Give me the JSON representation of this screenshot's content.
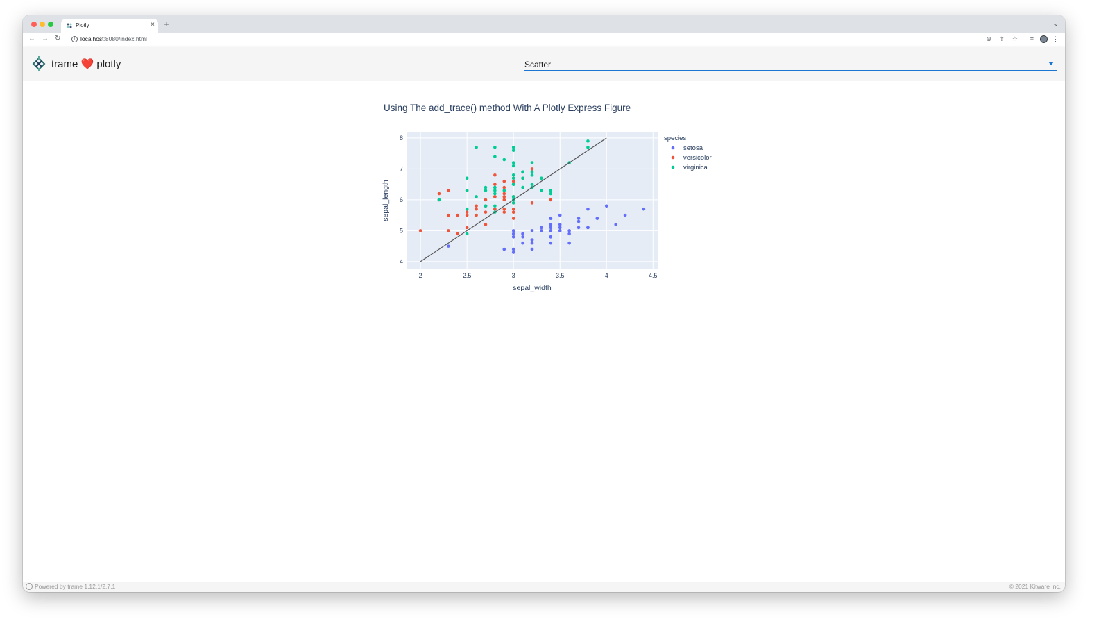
{
  "browser": {
    "tab_title": "Plotly",
    "url_host": "localhost",
    "url_path": ":8080/index.html",
    "new_tab": "+",
    "tab_close": "×"
  },
  "app": {
    "title_left": "trame",
    "heart": "❤️",
    "title_right": "plotly",
    "select_value": "Scatter"
  },
  "chart_data": {
    "type": "scatter",
    "title": "Using The add_trace() method With A Plotly Express Figure",
    "xlabel": "sepal_width",
    "ylabel": "sepal_length",
    "xlim": [
      1.85,
      4.55
    ],
    "ylim": [
      3.75,
      8.2
    ],
    "xticks": [
      2,
      2.5,
      3,
      3.5,
      4,
      4.5
    ],
    "xtick_labels": [
      "2",
      "2.5",
      "3",
      "3.5",
      "4",
      "4.5"
    ],
    "yticks": [
      4,
      5,
      6,
      7,
      8
    ],
    "ytick_labels": [
      "4",
      "5",
      "6",
      "7",
      "8"
    ],
    "grid": true,
    "background": "#e5ecf6",
    "legend_title": "species",
    "legend_position": "right",
    "series": [
      {
        "name": "setosa",
        "color": "#636efa",
        "x": [
          3.5,
          3.0,
          3.2,
          3.1,
          3.6,
          3.9,
          3.4,
          3.4,
          2.9,
          3.1,
          3.7,
          3.4,
          3.0,
          3.0,
          4.0,
          4.4,
          3.9,
          3.5,
          3.8,
          3.8,
          3.4,
          3.7,
          3.6,
          3.3,
          3.4,
          3.0,
          3.4,
          3.5,
          3.4,
          3.2,
          3.1,
          3.4,
          4.1,
          4.2,
          3.1,
          3.2,
          3.5,
          3.6,
          3.0,
          3.4,
          3.5,
          2.3,
          3.2,
          3.5,
          3.8,
          3.0,
          3.8,
          3.2,
          3.7,
          3.3
        ],
        "y": [
          5.1,
          4.9,
          4.7,
          4.6,
          5.0,
          5.4,
          4.6,
          5.0,
          4.4,
          4.9,
          5.4,
          4.8,
          4.8,
          4.3,
          5.8,
          5.7,
          5.4,
          5.1,
          5.7,
          5.1,
          5.4,
          5.1,
          4.6,
          5.1,
          4.8,
          5.0,
          5.0,
          5.2,
          5.2,
          4.7,
          4.8,
          5.4,
          5.2,
          5.5,
          4.9,
          5.0,
          5.5,
          4.9,
          4.4,
          5.1,
          5.0,
          4.5,
          4.4,
          5.0,
          5.1,
          4.8,
          5.1,
          4.6,
          5.3,
          5.0
        ]
      },
      {
        "name": "versicolor",
        "color": "#ef553b",
        "x": [
          3.2,
          3.2,
          3.1,
          2.3,
          2.8,
          2.8,
          3.3,
          2.4,
          2.9,
          2.7,
          2.0,
          3.0,
          2.2,
          2.9,
          2.9,
          3.1,
          3.0,
          2.7,
          2.2,
          2.5,
          3.2,
          2.8,
          2.5,
          2.8,
          2.9,
          3.0,
          2.8,
          3.0,
          2.9,
          2.6,
          2.4,
          2.4,
          2.7,
          2.7,
          3.0,
          3.4,
          3.1,
          2.3,
          3.0,
          2.5,
          2.6,
          3.0,
          2.6,
          2.3,
          2.7,
          3.0,
          2.9,
          2.9,
          2.5,
          2.8
        ],
        "y": [
          7.0,
          6.4,
          6.9,
          5.5,
          6.5,
          5.7,
          6.3,
          4.9,
          6.6,
          5.2,
          5.0,
          5.9,
          6.0,
          6.1,
          5.6,
          6.7,
          5.6,
          5.8,
          6.2,
          5.6,
          5.9,
          6.1,
          6.3,
          6.1,
          6.4,
          6.6,
          6.8,
          6.7,
          6.0,
          5.7,
          5.5,
          5.5,
          5.8,
          6.0,
          5.4,
          6.0,
          6.7,
          6.3,
          5.6,
          5.5,
          5.5,
          6.1,
          5.8,
          5.0,
          5.6,
          5.7,
          5.7,
          6.2,
          5.1,
          5.7
        ]
      },
      {
        "name": "virginica",
        "color": "#00cc96",
        "x": [
          3.3,
          2.7,
          3.0,
          2.9,
          3.0,
          3.0,
          2.5,
          2.9,
          2.5,
          3.6,
          3.2,
          2.7,
          3.0,
          2.5,
          2.8,
          3.2,
          3.0,
          3.8,
          2.6,
          2.2,
          3.2,
          2.8,
          2.8,
          2.7,
          3.3,
          3.2,
          2.8,
          3.0,
          2.8,
          3.0,
          2.8,
          3.8,
          2.8,
          2.8,
          2.6,
          3.0,
          3.4,
          3.1,
          3.0,
          3.1,
          3.1,
          3.1,
          2.7,
          3.2,
          3.3,
          3.0,
          2.5,
          3.0,
          3.4,
          3.0
        ],
        "y": [
          6.3,
          5.8,
          7.1,
          6.3,
          6.5,
          7.6,
          4.9,
          7.3,
          6.7,
          7.2,
          6.5,
          6.4,
          6.8,
          5.7,
          5.8,
          6.4,
          6.5,
          7.7,
          7.7,
          6.0,
          6.9,
          5.6,
          7.7,
          6.3,
          6.7,
          7.2,
          6.2,
          6.1,
          6.4,
          7.2,
          7.4,
          7.9,
          6.4,
          6.3,
          6.1,
          7.7,
          6.3,
          6.4,
          6.0,
          6.9,
          6.7,
          6.9,
          5.8,
          6.8,
          6.7,
          6.7,
          6.3,
          6.5,
          6.2,
          5.9
        ]
      }
    ],
    "added_trace": {
      "type": "line",
      "color": "#555555",
      "x": [
        2,
        4
      ],
      "y": [
        4,
        8
      ]
    }
  },
  "footer": {
    "left": "Powered by trame 1.12.1/2.7.1",
    "right": "© 2021 Kitware Inc."
  }
}
